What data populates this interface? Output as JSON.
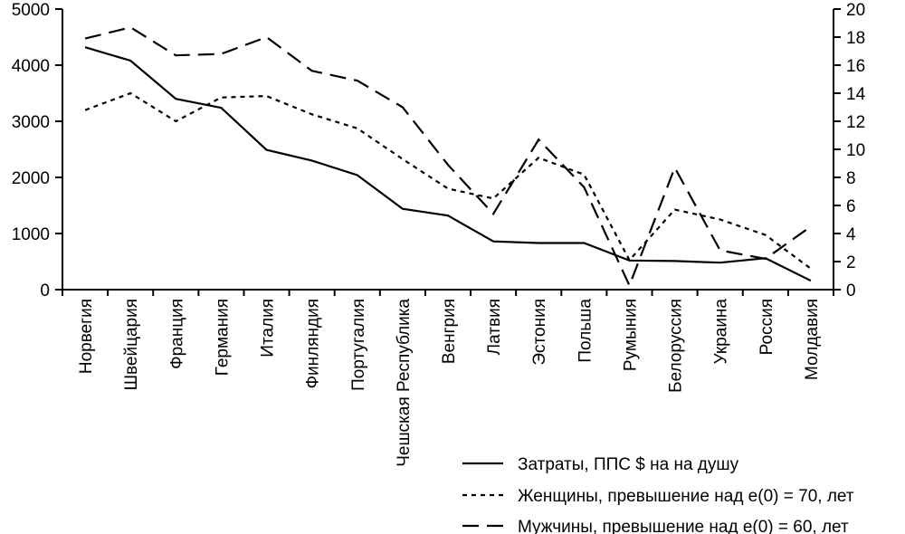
{
  "chart_data": {
    "type": "line",
    "categories": [
      "Норвегия",
      "Швейцария",
      "Франция",
      "Германия",
      "Италия",
      "Финляндия",
      "Португалия",
      "Чешская Республика",
      "Венгрия",
      "Латвия",
      "Эстония",
      "Польша",
      "Румыния",
      "Белоруссия",
      "Украина",
      "Россия",
      "Молдавия"
    ],
    "y_left": {
      "ylim": [
        0,
        5000
      ],
      "ticks": [
        0,
        1000,
        2000,
        3000,
        4000,
        5000
      ]
    },
    "y_right": {
      "ylim": [
        0,
        20
      ],
      "ticks": [
        0,
        2,
        4,
        6,
        8,
        10,
        12,
        14,
        16,
        18,
        20
      ]
    },
    "series": [
      {
        "name": "Затраты, ППС $ на на душу",
        "axis": "left",
        "style": "solid",
        "values": [
          4320,
          4080,
          3400,
          3240,
          2490,
          2300,
          2040,
          1440,
          1320,
          860,
          830,
          830,
          520,
          510,
          480,
          560,
          160
        ]
      },
      {
        "name": "Женщины, превышение над e(0) = 70, лет",
        "axis": "right",
        "style": "dotted",
        "values": [
          12.8,
          14.0,
          12.0,
          13.7,
          13.8,
          12.5,
          11.5,
          9.3,
          7.2,
          6.5,
          9.4,
          8.2,
          2.1,
          5.7,
          5.0,
          3.9,
          1.5
        ]
      },
      {
        "name": "Мужчины, превышение над e(0) = 60, лет",
        "axis": "right",
        "style": "dashed",
        "values": [
          17.9,
          18.7,
          16.7,
          16.8,
          18.0,
          15.6,
          14.9,
          13.0,
          8.9,
          5.4,
          10.7,
          7.3,
          0.3,
          8.7,
          2.8,
          2.2,
          4.5
        ]
      }
    ],
    "legend_position": "bottom-right",
    "grid": false
  }
}
